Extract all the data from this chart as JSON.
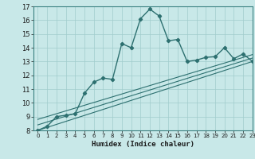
{
  "xlabel": "Humidex (Indice chaleur)",
  "background_color": "#c8e8e8",
  "line_color": "#2d7070",
  "xlim": [
    -0.5,
    23
  ],
  "ylim": [
    8,
    17
  ],
  "xticks": [
    0,
    1,
    2,
    3,
    4,
    5,
    6,
    7,
    8,
    9,
    10,
    11,
    12,
    13,
    14,
    15,
    16,
    17,
    18,
    19,
    20,
    21,
    22,
    23
  ],
  "yticks": [
    8,
    9,
    10,
    11,
    12,
    13,
    14,
    15,
    16,
    17
  ],
  "main_line_x": [
    0,
    1,
    2,
    3,
    4,
    5,
    6,
    7,
    8,
    9,
    10,
    11,
    12,
    13,
    14,
    15,
    16,
    17,
    18,
    19,
    20,
    21,
    22,
    23
  ],
  "main_line_y": [
    8.0,
    8.3,
    9.0,
    9.1,
    9.2,
    10.7,
    11.5,
    11.8,
    11.7,
    14.3,
    14.0,
    16.1,
    16.8,
    16.3,
    14.5,
    14.6,
    13.0,
    13.1,
    13.3,
    13.35,
    14.0,
    13.2,
    13.55,
    13.0
  ],
  "line1_x": [
    0,
    23
  ],
  "line1_y": [
    8.0,
    13.0
  ],
  "line2_x": [
    0,
    23
  ],
  "line2_y": [
    8.4,
    13.25
  ],
  "line3_x": [
    0,
    23
  ],
  "line3_y": [
    8.8,
    13.5
  ],
  "figsize": [
    3.2,
    2.0
  ],
  "dpi": 100
}
